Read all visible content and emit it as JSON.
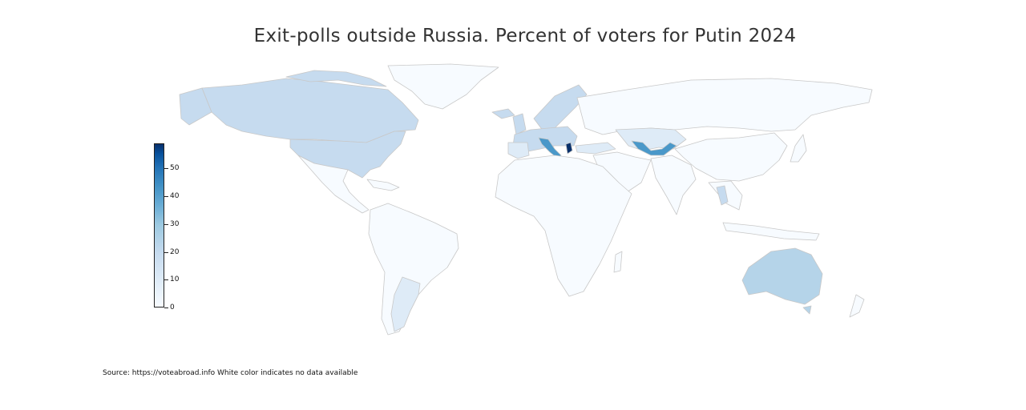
{
  "title": "Exit-polls outside Russia. Percent of voters for Putin 2024",
  "source_note": "Source: https://voteabroad.info White color indicates no data available",
  "colorbar": {
    "ticks": [
      {
        "value": 0,
        "label": "0"
      },
      {
        "value": 10,
        "label": "10"
      },
      {
        "value": 20,
        "label": "20"
      },
      {
        "value": 30,
        "label": "30"
      },
      {
        "value": 40,
        "label": "40"
      },
      {
        "value": 50,
        "label": "50"
      }
    ],
    "min": 0,
    "max": 59,
    "colormap": "Blues"
  },
  "colors": {
    "no_data": "#f7fbff",
    "border": "#c8c8c8",
    "light": "#deebf7",
    "mid": "#c6dbef",
    "medium": "#b5d4e9",
    "strong": "#4a98c9",
    "dark": "#08306b"
  },
  "chart_data": {
    "type": "heatmap",
    "title": "Exit-polls outside Russia. Percent of voters for Putin 2024",
    "xlabel": "",
    "ylabel": "",
    "value_range": [
      0,
      59
    ],
    "legend": "colorbar left"
  }
}
